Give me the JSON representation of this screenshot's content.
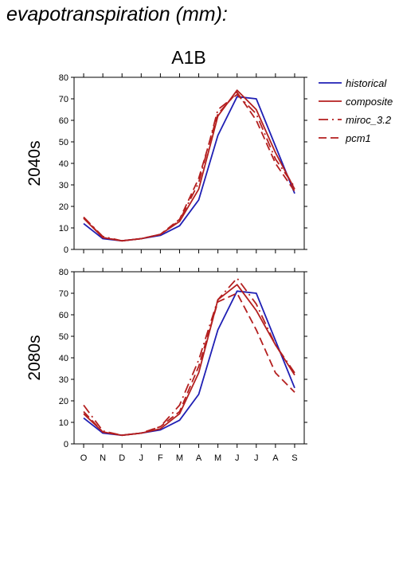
{
  "heading": "evapotranspiration (mm):",
  "scenario": "A1B",
  "legend": [
    {
      "name": "historical",
      "color": "#1f1fb4",
      "dash": "solid"
    },
    {
      "name": "composite",
      "color": "#b41f1f",
      "dash": "solid"
    },
    {
      "name": "miroc_3.2",
      "color": "#b41f1f",
      "dash": "dashdot"
    },
    {
      "name": "pcm1",
      "color": "#b41f1f",
      "dash": "dash"
    }
  ],
  "chart_data": [
    {
      "type": "line",
      "panel_label": "2040s",
      "categories": [
        "O",
        "N",
        "D",
        "J",
        "F",
        "M",
        "A",
        "M",
        "J",
        "J",
        "A",
        "S"
      ],
      "ylim": [
        0,
        80
      ],
      "yticks": [
        0,
        10,
        20,
        30,
        40,
        50,
        60,
        70,
        80
      ],
      "series": [
        {
          "name": "historical",
          "values": [
            12,
            5,
            4,
            5,
            6.5,
            11,
            23,
            53,
            71,
            70,
            48,
            26
          ]
        },
        {
          "name": "composite",
          "values": [
            14.5,
            5.5,
            4,
            5,
            7,
            13,
            28,
            62,
            74,
            65,
            45,
            28
          ]
        },
        {
          "name": "miroc_3.2",
          "values": [
            15,
            6,
            4,
            5,
            7,
            13.5,
            31,
            65,
            72,
            63,
            42,
            29
          ]
        },
        {
          "name": "pcm1",
          "values": [
            15,
            5.5,
            4,
            5,
            7,
            14,
            33,
            63,
            73,
            60,
            40,
            27
          ]
        }
      ]
    },
    {
      "type": "line",
      "panel_label": "2080s",
      "categories": [
        "O",
        "N",
        "D",
        "J",
        "F",
        "M",
        "A",
        "M",
        "J",
        "J",
        "A",
        "S"
      ],
      "ylim": [
        0,
        80
      ],
      "yticks": [
        0,
        10,
        20,
        30,
        40,
        50,
        60,
        70,
        80
      ],
      "series": [
        {
          "name": "historical",
          "values": [
            12,
            5,
            4,
            5,
            6.5,
            11,
            23,
            53,
            71,
            70,
            48,
            26
          ]
        },
        {
          "name": "composite",
          "values": [
            14,
            5.5,
            4,
            5,
            7,
            14,
            33,
            67,
            74,
            62,
            46,
            32
          ]
        },
        {
          "name": "miroc_3.2",
          "values": [
            18,
            6,
            4,
            5,
            8,
            18,
            39,
            67,
            77,
            65,
            46,
            33
          ]
        },
        {
          "name": "pcm1",
          "values": [
            15,
            5.5,
            4,
            5,
            8,
            15,
            36,
            66,
            70,
            53,
            33,
            24
          ]
        }
      ]
    }
  ]
}
